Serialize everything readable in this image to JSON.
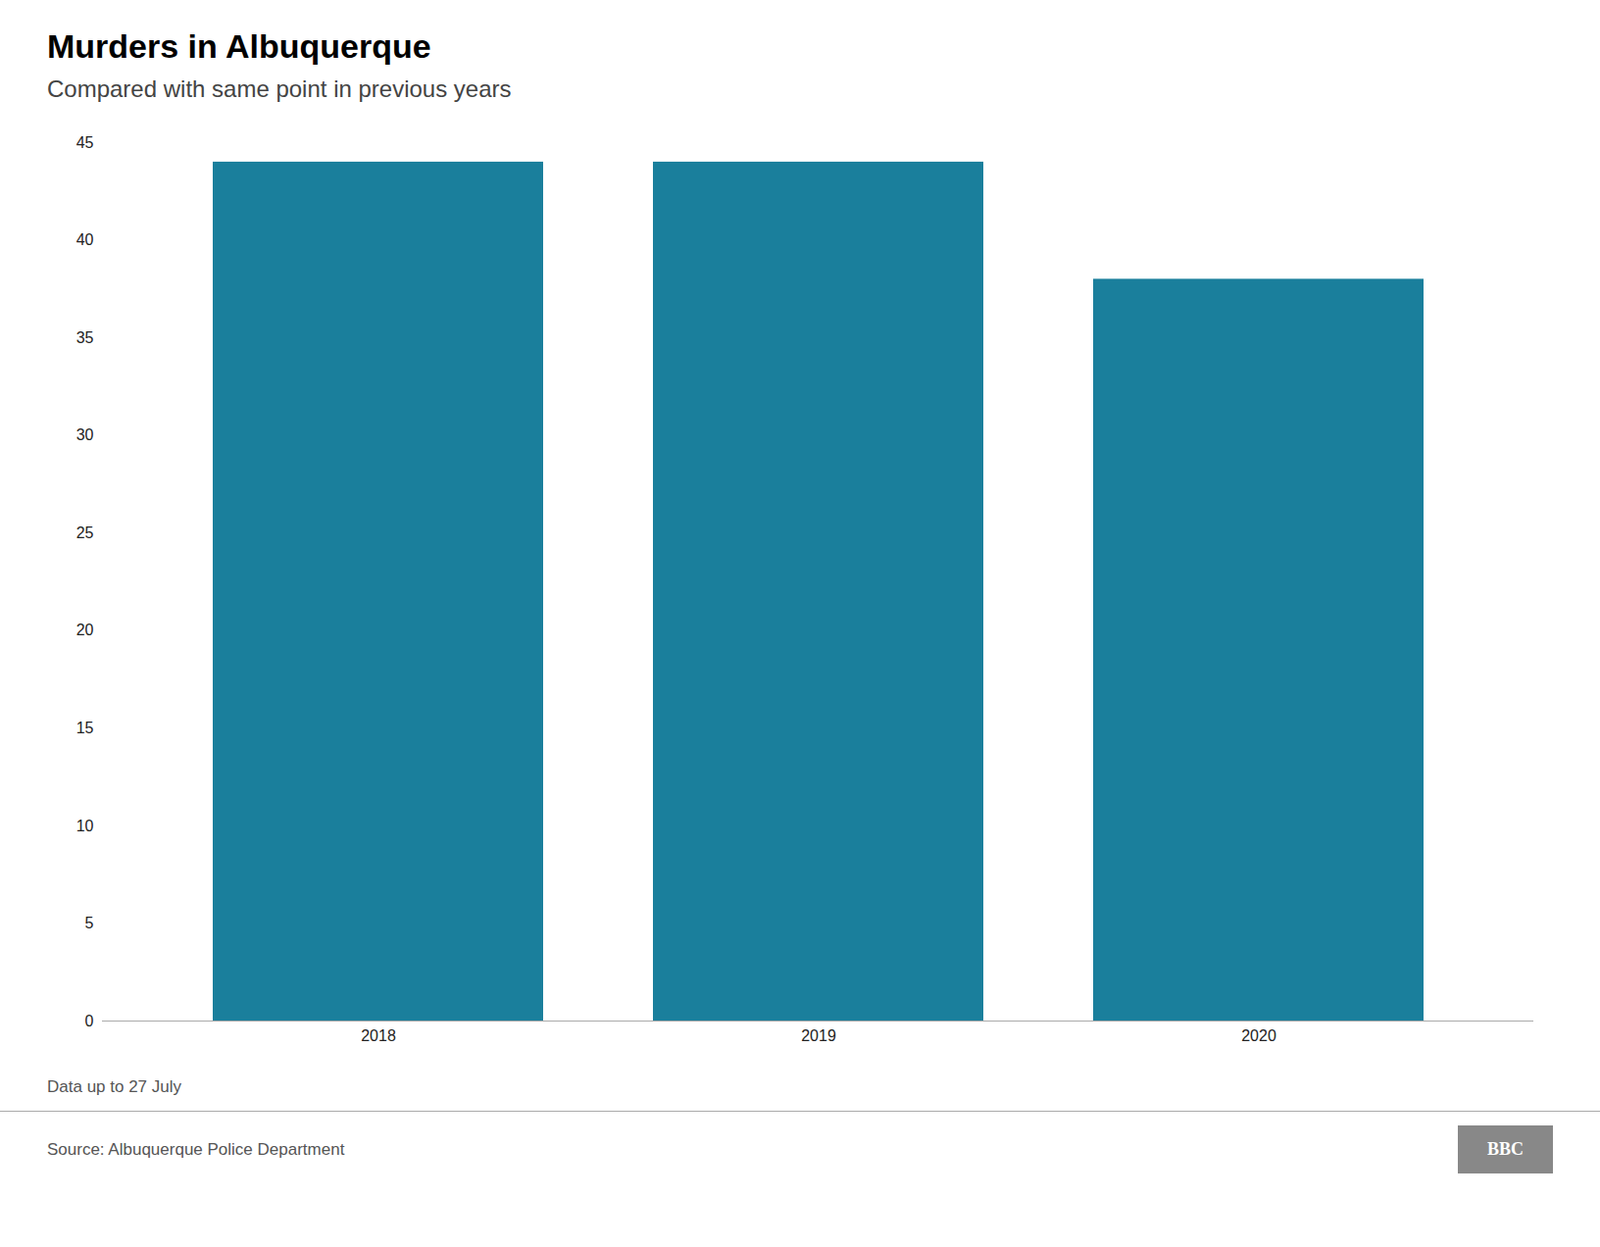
{
  "chart_data": {
    "type": "bar",
    "title": "Murders in Albuquerque",
    "subtitle": "Compared with same point in previous years",
    "categories": [
      "2018",
      "2019",
      "2020"
    ],
    "values": [
      44,
      44,
      38
    ],
    "color": "#1a7f9c",
    "ylim": [
      0,
      45
    ],
    "yticks": [
      0,
      5,
      10,
      15,
      20,
      25,
      30,
      35,
      40,
      45
    ],
    "grid": false,
    "footnote": "Data up to 27 July",
    "source": "Source: Albuquerque Police Department",
    "badge": "BBC"
  }
}
